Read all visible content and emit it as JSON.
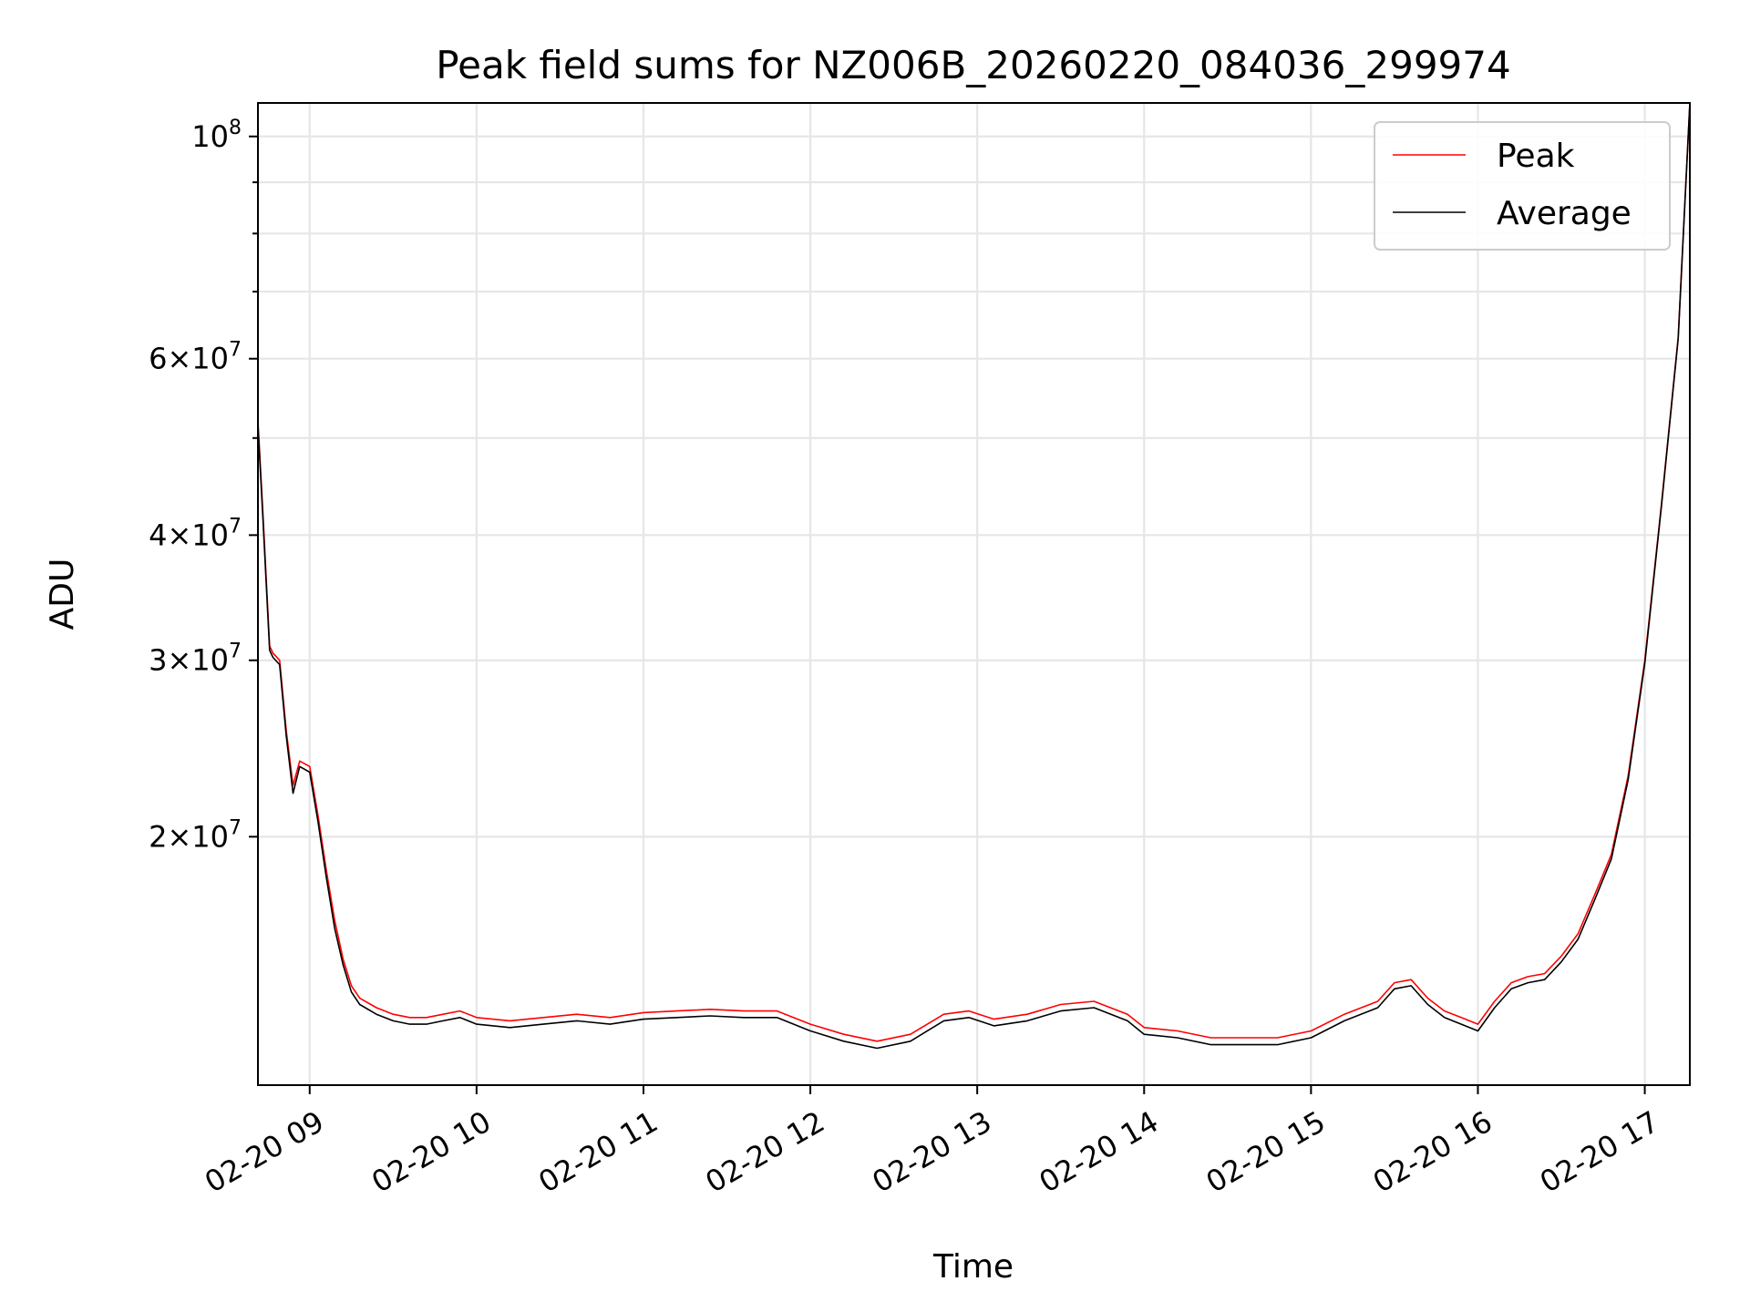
{
  "chart_data": {
    "type": "line",
    "title": "Peak field sums for NZ006B_20260220_084036_299974",
    "xlabel": "Time",
    "ylabel": "ADU",
    "yscale": "log",
    "grid": true,
    "legend_position": "top-right",
    "x_unit": "hours since 02-20 00:00",
    "xlim": [
      8.69,
      17.27
    ],
    "ylim": [
      11300000,
      108000000
    ],
    "x_ticks": [
      {
        "value": 9,
        "label": "02-20 09"
      },
      {
        "value": 10,
        "label": "02-20 10"
      },
      {
        "value": 11,
        "label": "02-20 11"
      },
      {
        "value": 12,
        "label": "02-20 12"
      },
      {
        "value": 13,
        "label": "02-20 13"
      },
      {
        "value": 14,
        "label": "02-20 14"
      },
      {
        "value": 15,
        "label": "02-20 15"
      },
      {
        "value": 16,
        "label": "02-20 16"
      },
      {
        "value": 17,
        "label": "02-20 17"
      }
    ],
    "y_ticks": [
      {
        "value": 20000000,
        "mantissa": "2",
        "base": "10",
        "exp": "7"
      },
      {
        "value": 30000000,
        "mantissa": "3",
        "base": "10",
        "exp": "7"
      },
      {
        "value": 40000000,
        "mantissa": "4",
        "base": "10",
        "exp": "7"
      },
      {
        "value": 60000000,
        "mantissa": "6",
        "base": "10",
        "exp": "7"
      },
      {
        "value": 100000000,
        "mantissa": "",
        "base": "10",
        "exp": "8"
      }
    ],
    "y_minor_ticks": [
      50000000,
      70000000,
      80000000,
      90000000
    ],
    "series": [
      {
        "name": "Peak",
        "color": "#ff0000",
        "x": [
          8.69,
          8.72,
          8.76,
          8.78,
          8.82,
          8.86,
          8.9,
          8.94,
          9.0,
          9.05,
          9.1,
          9.15,
          9.2,
          9.25,
          9.3,
          9.4,
          9.5,
          9.6,
          9.7,
          9.8,
          9.9,
          10.0,
          10.2,
          10.4,
          10.6,
          10.8,
          11.0,
          11.2,
          11.4,
          11.6,
          11.8,
          12.0,
          12.2,
          12.4,
          12.6,
          12.8,
          12.95,
          13.1,
          13.3,
          13.5,
          13.7,
          13.9,
          14.0,
          14.2,
          14.4,
          14.6,
          14.8,
          15.0,
          15.2,
          15.4,
          15.5,
          15.6,
          15.7,
          15.8,
          15.9,
          16.0,
          16.1,
          16.2,
          16.3,
          16.4,
          16.5,
          16.6,
          16.7,
          16.8,
          16.9,
          17.0,
          17.1,
          17.2,
          17.27
        ],
        "values": [
          52000000,
          42000000,
          31000000,
          30500000,
          30000000,
          25500000,
          22500000,
          23800000,
          23500000,
          21000000,
          18500000,
          16500000,
          15100000,
          14200000,
          13800000,
          13500000,
          13300000,
          13200000,
          13200000,
          13300000,
          13400000,
          13200000,
          13100000,
          13200000,
          13300000,
          13200000,
          13350000,
          13400000,
          13450000,
          13400000,
          13400000,
          13000000,
          12700000,
          12500000,
          12700000,
          13300000,
          13400000,
          13150000,
          13300000,
          13600000,
          13700000,
          13300000,
          12900000,
          12800000,
          12600000,
          12600000,
          12600000,
          12800000,
          13300000,
          13700000,
          14300000,
          14400000,
          13800000,
          13400000,
          13200000,
          13000000,
          13700000,
          14300000,
          14500000,
          14600000,
          15200000,
          16000000,
          17500000,
          19200000,
          23000000,
          30000000,
          43000000,
          63000000,
          108000000
        ]
      },
      {
        "name": "Average",
        "color": "#000000",
        "x": [
          8.69,
          8.72,
          8.76,
          8.78,
          8.82,
          8.86,
          8.9,
          8.94,
          9.0,
          9.05,
          9.1,
          9.15,
          9.2,
          9.25,
          9.3,
          9.4,
          9.5,
          9.6,
          9.7,
          9.8,
          9.9,
          10.0,
          10.2,
          10.4,
          10.6,
          10.8,
          11.0,
          11.2,
          11.4,
          11.6,
          11.8,
          12.0,
          12.2,
          12.4,
          12.6,
          12.8,
          12.95,
          13.1,
          13.3,
          13.5,
          13.7,
          13.9,
          14.0,
          14.2,
          14.4,
          14.6,
          14.8,
          15.0,
          15.2,
          15.4,
          15.5,
          15.6,
          15.7,
          15.8,
          15.9,
          16.0,
          16.1,
          16.2,
          16.3,
          16.4,
          16.5,
          16.6,
          16.7,
          16.8,
          16.9,
          17.0,
          17.1,
          17.2,
          17.27
        ],
        "values": [
          51500000,
          41500000,
          30700000,
          30200000,
          29700000,
          25200000,
          22100000,
          23500000,
          23200000,
          20700000,
          18200000,
          16200000,
          14900000,
          14000000,
          13600000,
          13300000,
          13100000,
          13000000,
          13000000,
          13100000,
          13200000,
          13000000,
          12900000,
          13000000,
          13100000,
          13000000,
          13150000,
          13200000,
          13250000,
          13200000,
          13200000,
          12800000,
          12500000,
          12300000,
          12500000,
          13100000,
          13200000,
          12950000,
          13100000,
          13400000,
          13500000,
          13100000,
          12700000,
          12600000,
          12400000,
          12400000,
          12400000,
          12600000,
          13100000,
          13500000,
          14100000,
          14200000,
          13600000,
          13200000,
          13000000,
          12800000,
          13500000,
          14100000,
          14300000,
          14400000,
          15000000,
          15800000,
          17300000,
          19000000,
          22800000,
          29800000,
          42800000,
          62800000,
          108000000
        ]
      }
    ]
  }
}
